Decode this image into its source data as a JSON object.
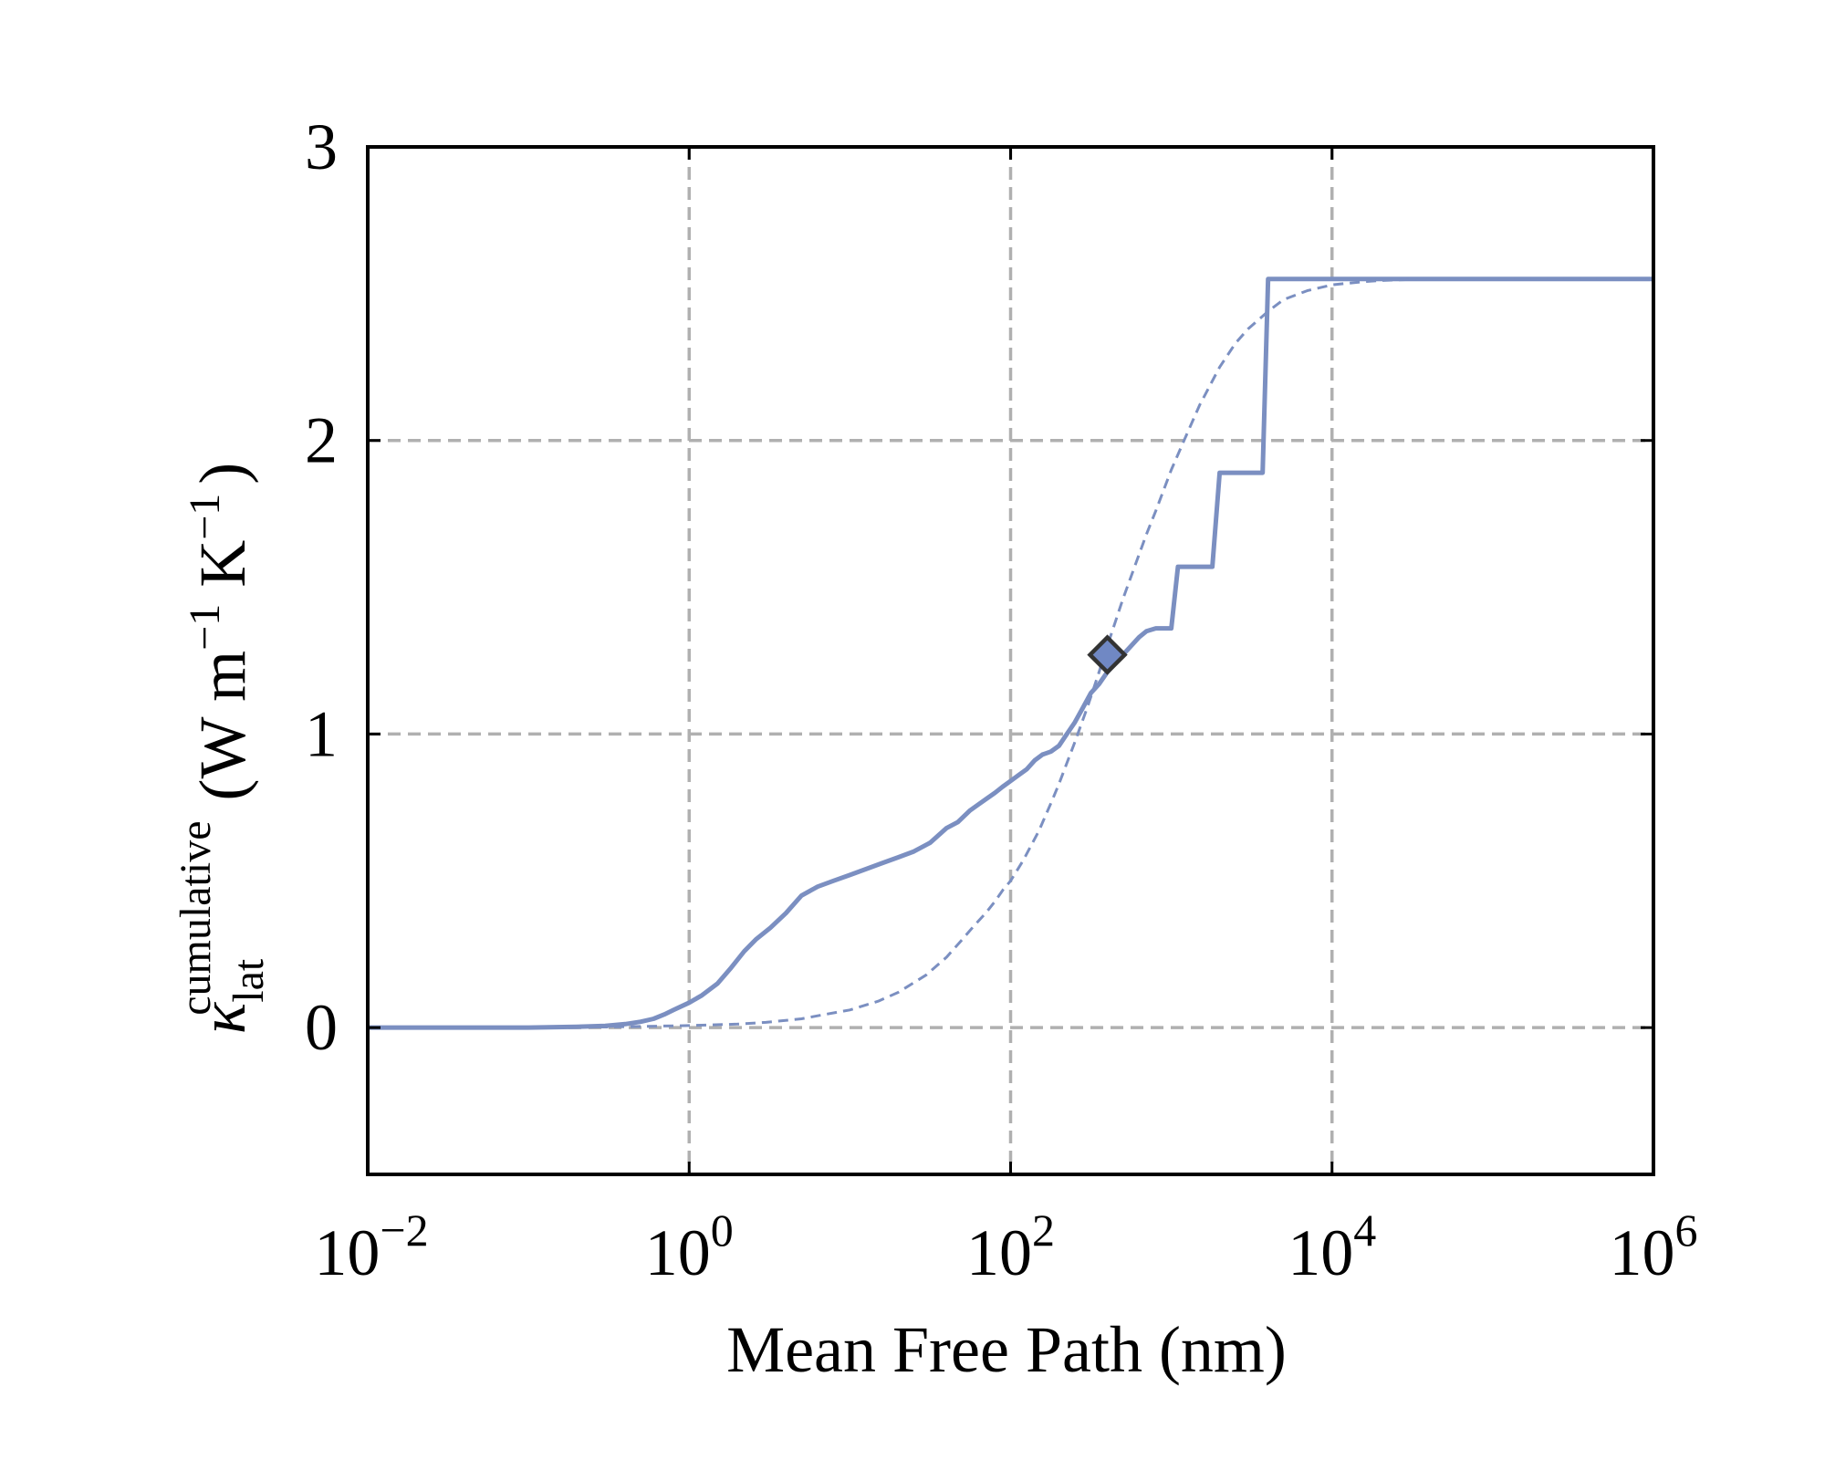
{
  "chart_data": {
    "type": "line",
    "xlabel": "Mean Free Path (nm)",
    "ylabel": {
      "symbol": "κ",
      "subscript": "lat",
      "superscript": "cumulative",
      "units": "(W m",
      "units_exp1": "−1",
      "units_mid": " K",
      "units_exp2": "−1",
      "units_close": ")"
    },
    "x_scale": "log",
    "xlim": [
      0.01,
      1000000
    ],
    "ylim": [
      -0.5,
      3
    ],
    "grid": true,
    "x_ticks": [
      {
        "value": 0.01,
        "base": "10",
        "exp": "−2"
      },
      {
        "value": 1,
        "base": "10",
        "exp": "0"
      },
      {
        "value": 100,
        "base": "10",
        "exp": "2"
      },
      {
        "value": 10000,
        "base": "10",
        "exp": "4"
      },
      {
        "value": 1000000,
        "base": "10",
        "exp": "6"
      }
    ],
    "y_ticks": [
      {
        "value": 0,
        "label": "0"
      },
      {
        "value": 1,
        "label": "1"
      },
      {
        "value": 2,
        "label": "2"
      },
      {
        "value": 3,
        "label": "3"
      }
    ],
    "series": [
      {
        "style": "solid",
        "color": "#7b8fc1",
        "x": [
          0.01,
          0.1,
          0.2,
          0.3,
          0.4,
          0.5,
          0.6,
          0.7,
          0.8,
          1.0,
          1.2,
          1.5,
          1.8,
          2.2,
          2.6,
          3.2,
          4.0,
          5.0,
          6.3,
          7.9,
          10,
          12.6,
          15.8,
          20,
          25,
          31.6,
          40,
          47,
          56,
          63,
          71,
          80,
          89,
          100,
          112,
          126,
          141,
          158,
          178,
          200,
          224,
          251,
          282,
          316,
          355,
          398,
          447,
          500,
          562,
          630,
          700,
          800,
          900,
          1000,
          1100,
          1400,
          1600,
          1800,
          2000,
          2700,
          3200,
          3500,
          3700,
          4000,
          4200,
          4500,
          1000000
        ],
        "y": [
          0,
          0,
          0.003,
          0.006,
          0.012,
          0.02,
          0.03,
          0.045,
          0.06,
          0.085,
          0.11,
          0.15,
          0.2,
          0.26,
          0.3,
          0.34,
          0.39,
          0.45,
          0.48,
          0.5,
          0.52,
          0.54,
          0.56,
          0.58,
          0.6,
          0.63,
          0.68,
          0.7,
          0.74,
          0.76,
          0.78,
          0.8,
          0.82,
          0.84,
          0.86,
          0.88,
          0.91,
          0.93,
          0.94,
          0.96,
          1.0,
          1.04,
          1.09,
          1.14,
          1.17,
          1.21,
          1.24,
          1.27,
          1.3,
          1.33,
          1.35,
          1.36,
          1.36,
          1.36,
          1.57,
          1.57,
          1.57,
          1.57,
          1.89,
          1.89,
          1.89,
          1.89,
          1.89,
          2.55,
          2.55,
          2.55,
          2.55
        ]
      },
      {
        "style": "dashed",
        "color": "#7b8fc1",
        "x": [
          0.01,
          0.3,
          0.5,
          1,
          2,
          3,
          5,
          7,
          10,
          15,
          20,
          30,
          40,
          50,
          60,
          70,
          80,
          90,
          100,
          120,
          150,
          180,
          200,
          250,
          300,
          350,
          400,
          500,
          600,
          700,
          800,
          1000,
          1200,
          1500,
          2000,
          2500,
          3000,
          4000,
          5000,
          7000,
          10000,
          15000,
          20000,
          30000,
          50000,
          100000,
          1000000
        ],
        "y": [
          0,
          0.002,
          0.004,
          0.007,
          0.012,
          0.018,
          0.03,
          0.045,
          0.06,
          0.09,
          0.12,
          0.18,
          0.24,
          0.3,
          0.35,
          0.39,
          0.43,
          0.47,
          0.5,
          0.57,
          0.67,
          0.77,
          0.83,
          0.97,
          1.09,
          1.2,
          1.3,
          1.46,
          1.58,
          1.68,
          1.76,
          1.9,
          2.0,
          2.12,
          2.25,
          2.33,
          2.38,
          2.44,
          2.48,
          2.51,
          2.53,
          2.54,
          2.545,
          2.548,
          2.55,
          2.55,
          2.55
        ]
      }
    ],
    "markers": [
      {
        "shape": "diamond",
        "x": 400,
        "y": 1.27,
        "fill": "#7088c4",
        "edge": "#333333"
      }
    ]
  }
}
